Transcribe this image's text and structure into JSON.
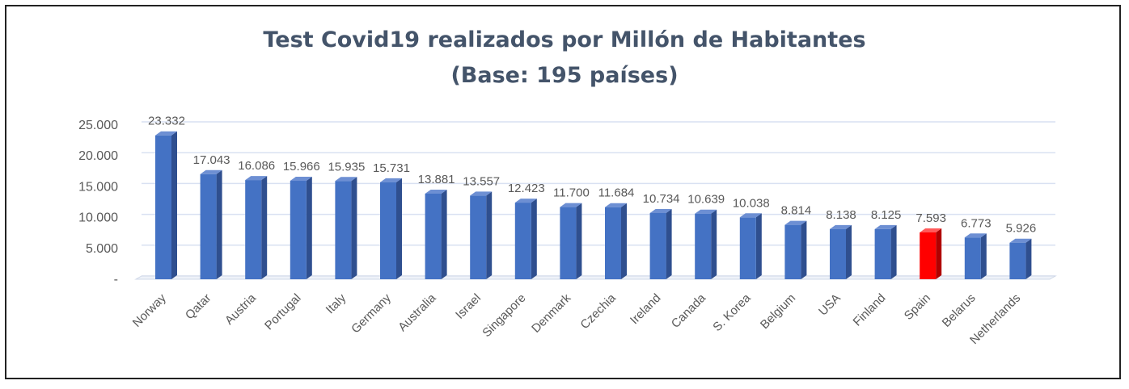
{
  "chart_data": {
    "type": "bar",
    "title": "Test Covid19 realizados por Millón de Habitantes",
    "subtitle": "(Base: 195 países)",
    "categories": [
      "Norway",
      "Qatar",
      "Austria",
      "Portugal",
      "Italy",
      "Germany",
      "Australia",
      "Israel",
      "Singapore",
      "Denmark",
      "Czechia",
      "Ireland",
      "Canada",
      "S. Korea",
      "Belgium",
      "USA",
      "Finland",
      "Spain",
      "Belarus",
      "Netherlands"
    ],
    "values": [
      23332,
      17043,
      16086,
      15966,
      15935,
      15731,
      13881,
      13557,
      12423,
      11700,
      11684,
      10734,
      10639,
      10038,
      8814,
      8138,
      8125,
      7593,
      6773,
      5926
    ],
    "data_labels": [
      "23.332",
      "17.043",
      "16.086",
      "15.966",
      "15.935",
      "15.731",
      "13.881",
      "13.557",
      "12.423",
      "11.700",
      "11.684",
      "10.734",
      "10.639",
      "10.038",
      "8.814",
      "8.138",
      "8.125",
      "7.593",
      "6.773",
      "5.926"
    ],
    "highlight_index": 17,
    "y_ticks": [
      {
        "value": 0,
        "label": "-"
      },
      {
        "value": 5000,
        "label": "5.000"
      },
      {
        "value": 10000,
        "label": "10.000"
      },
      {
        "value": 15000,
        "label": "15.000"
      },
      {
        "value": 20000,
        "label": "20.000"
      },
      {
        "value": 25000,
        "label": "25.000"
      }
    ],
    "ylim": [
      0,
      25000
    ],
    "grid": true,
    "colors": {
      "bar": "#4472c4",
      "highlight": "#ff0000",
      "highlight_label": "#ff0000",
      "grid": "#d9e1f2",
      "text": "#595959",
      "title": "#44546a"
    }
  }
}
